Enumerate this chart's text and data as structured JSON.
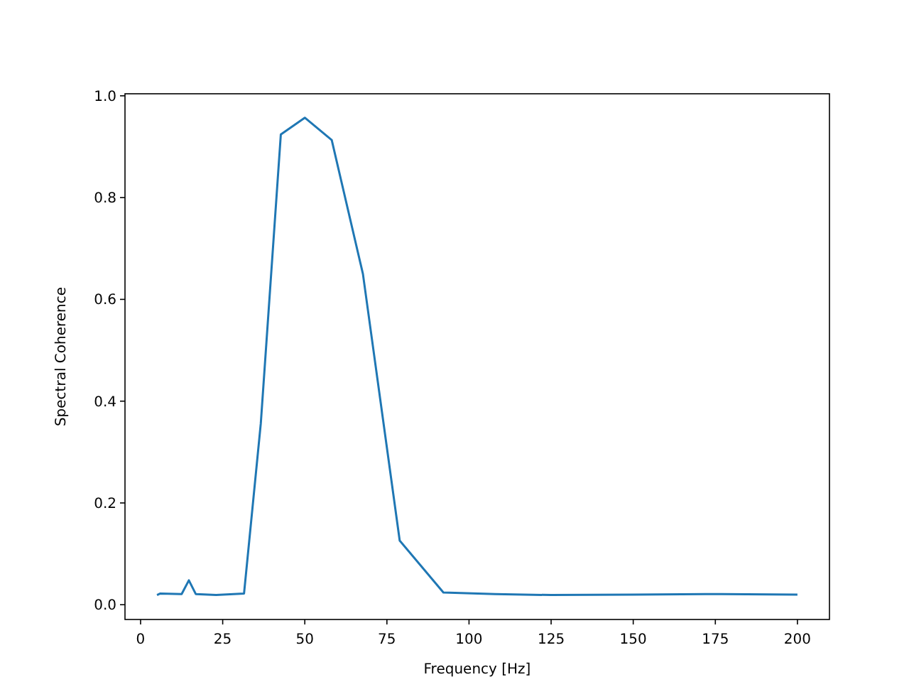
{
  "chart_data": {
    "type": "line",
    "xlabel": "Frequency [Hz]",
    "ylabel": "Spectral Coherence",
    "series": [
      {
        "color": "#1f77b4",
        "x": [
          5,
          6,
          12.5,
          14.7,
          16.8,
          23,
          31.5,
          36.6,
          42.7,
          50,
          58.2,
          67.7,
          78.9,
          92.2,
          108,
          125,
          150,
          172,
          200
        ],
        "values": [
          0.019,
          0.022,
          0.021,
          0.048,
          0.021,
          0.019,
          0.022,
          0.356,
          0.924,
          0.957,
          0.913,
          0.65,
          0.126,
          0.024,
          0.021,
          0.019,
          0.02,
          0.021,
          0.02
        ]
      }
    ],
    "xlim": [
      -4.75,
      209.75
    ],
    "ylim": [
      -0.029,
      1.004
    ],
    "xticks": [
      0,
      25,
      50,
      75,
      100,
      125,
      150,
      175,
      200
    ],
    "yticks": [
      {
        "value": 0,
        "label": "0.0"
      },
      {
        "value": 0.2,
        "label": "0.2"
      },
      {
        "value": 0.4,
        "label": "0.4"
      },
      {
        "value": 0.6,
        "label": "0.6"
      },
      {
        "value": 0.8,
        "label": "0.8"
      },
      {
        "value": 1,
        "label": "1.0"
      }
    ]
  }
}
